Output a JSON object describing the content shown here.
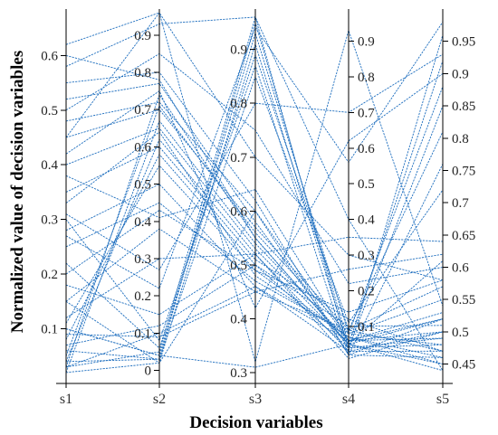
{
  "chart_data": {
    "type": "parallel-coordinates",
    "xlabel": "Decision variables",
    "ylabel": "Normalized value of decision variables",
    "categories": [
      "s1",
      "s2",
      "s3",
      "s4",
      "s5"
    ],
    "axes": [
      {
        "name": "s1",
        "ylim": [
          0.0,
          0.685
        ],
        "ticks": [
          0.1,
          0.2,
          0.3,
          0.4,
          0.5,
          0.6
        ],
        "tick_labels": [
          "0.1",
          "0.2",
          "0.3",
          "0.4",
          "0.5",
          "0.6"
        ],
        "tick_side": "left"
      },
      {
        "name": "s2",
        "ylim": [
          -0.035,
          0.97
        ],
        "ticks": [
          0,
          0.1,
          0.2,
          0.3,
          0.4,
          0.5,
          0.6,
          0.7,
          0.8,
          0.9
        ],
        "tick_labels": [
          "0",
          "0.1",
          "0.2",
          "0.3",
          "0.4",
          "0.5",
          "0.6",
          "0.7",
          "0.8",
          "0.9"
        ],
        "tick_side": "left"
      },
      {
        "name": "s3",
        "ylim": [
          0.28,
          0.975
        ],
        "ticks": [
          0.3,
          0.4,
          0.5,
          0.6,
          0.7,
          0.8,
          0.9
        ],
        "tick_labels": [
          "0.3",
          "0.4",
          "0.5",
          "0.6",
          "0.7",
          "0.8",
          "0.9"
        ],
        "tick_side": "left"
      },
      {
        "name": "s4",
        "ylim": [
          -0.06,
          0.99
        ],
        "ticks": [
          0.1,
          0.2,
          0.3,
          0.4,
          0.5,
          0.6,
          0.7,
          0.8,
          0.9
        ],
        "tick_labels": [
          "0.1",
          "0.2",
          "0.3",
          "0.4",
          "0.5",
          "0.6",
          "0.7",
          "0.8",
          "0.9"
        ],
        "tick_side": "right"
      },
      {
        "name": "s5",
        "ylim": [
          0.42,
          1.0
        ],
        "ticks": [
          0.45,
          0.5,
          0.55,
          0.6,
          0.65,
          0.7,
          0.75,
          0.8,
          0.85,
          0.9,
          0.95
        ],
        "tick_labels": [
          "0.45",
          "0.5",
          "0.55",
          "0.6",
          "0.65",
          "0.7",
          "0.75",
          "0.8",
          "0.85",
          "0.9",
          "0.95"
        ],
        "tick_side": "right"
      }
    ],
    "series": [
      {
        "values": [
          0.03,
          0.74,
          0.55,
          0.05,
          0.52
        ]
      },
      {
        "values": [
          0.05,
          0.71,
          0.56,
          0.08,
          0.48
        ]
      },
      {
        "values": [
          0.02,
          0.67,
          0.54,
          0.06,
          0.5
        ]
      },
      {
        "values": [
          0.04,
          0.62,
          0.52,
          0.03,
          0.47
        ]
      },
      {
        "values": [
          0.08,
          0.58,
          0.5,
          0.1,
          0.51
        ]
      },
      {
        "values": [
          0.11,
          0.55,
          0.49,
          0.07,
          0.46
        ]
      },
      {
        "values": [
          0.03,
          0.05,
          0.96,
          0.03,
          0.96
        ]
      },
      {
        "values": [
          0.06,
          0.03,
          0.95,
          0.05,
          0.92
        ]
      },
      {
        "values": [
          0.1,
          0.04,
          0.93,
          0.08,
          0.88
        ]
      },
      {
        "values": [
          0.15,
          0.02,
          0.91,
          0.04,
          0.85
        ]
      },
      {
        "values": [
          0.22,
          0.06,
          0.89,
          0.09,
          0.81
        ]
      },
      {
        "values": [
          0.3,
          0.08,
          0.87,
          0.02,
          0.76
        ]
      },
      {
        "values": [
          0.04,
          0.03,
          0.85,
          0.11,
          0.72
        ]
      },
      {
        "values": [
          0.62,
          0.96,
          0.32,
          0.93,
          0.54
        ]
      },
      {
        "values": [
          0.58,
          0.93,
          0.96,
          0.4,
          0.44
        ]
      },
      {
        "values": [
          0.55,
          0.8,
          0.62,
          0.02,
          0.46
        ]
      },
      {
        "values": [
          0.52,
          0.77,
          0.58,
          0.04,
          0.49
        ]
      },
      {
        "values": [
          0.48,
          0.72,
          0.6,
          0.06,
          0.53
        ]
      },
      {
        "values": [
          0.45,
          0.7,
          0.57,
          0.09,
          0.57
        ]
      },
      {
        "values": [
          0.4,
          0.65,
          0.53,
          0.05,
          0.61
        ]
      },
      {
        "values": [
          0.35,
          0.6,
          0.51,
          0.12,
          0.47
        ]
      },
      {
        "values": [
          0.33,
          0.64,
          0.48,
          0.07,
          0.45
        ]
      },
      {
        "values": [
          0.28,
          0.5,
          0.46,
          0.03,
          0.5
        ]
      },
      {
        "values": [
          0.25,
          0.45,
          0.47,
          0.08,
          0.55
        ]
      },
      {
        "values": [
          0.2,
          0.43,
          0.49,
          0.14,
          0.58
        ]
      },
      {
        "values": [
          0.15,
          0.38,
          0.45,
          0.26,
          0.62
        ]
      },
      {
        "values": [
          0.12,
          0.3,
          0.52,
          0.35,
          0.64
        ]
      },
      {
        "values": [
          0.07,
          0.12,
          0.5,
          0.04,
          0.48
        ]
      },
      {
        "values": [
          0.03,
          0.1,
          0.46,
          0.06,
          0.49
        ]
      },
      {
        "values": [
          0.09,
          0.09,
          0.45,
          0.09,
          0.47
        ]
      },
      {
        "values": [
          0.02,
          0.02,
          0.6,
          0.02,
          0.52
        ]
      },
      {
        "values": [
          0.1,
          0.04,
          0.31,
          0.05,
          0.45
        ]
      },
      {
        "values": [
          0.45,
          0.96,
          0.7,
          0.3,
          0.58
        ]
      },
      {
        "values": [
          0.5,
          0.85,
          0.75,
          0.22,
          0.6
        ]
      },
      {
        "values": [
          0.6,
          0.78,
          0.55,
          0.05,
          0.44
        ]
      },
      {
        "values": [
          0.31,
          0.27,
          0.8,
          0.7,
          0.93
        ]
      },
      {
        "values": [
          0.27,
          0.22,
          0.94,
          0.56,
          0.98
        ]
      },
      {
        "values": [
          0.18,
          0.15,
          0.52,
          0.01,
          0.5
        ]
      },
      {
        "values": [
          0.38,
          0.41,
          0.64,
          0.06,
          0.52
        ]
      },
      {
        "values": [
          0.42,
          0.75,
          0.42,
          0.62,
          0.9
        ]
      }
    ],
    "line_color": "#1f6fbf",
    "grid": false
  }
}
